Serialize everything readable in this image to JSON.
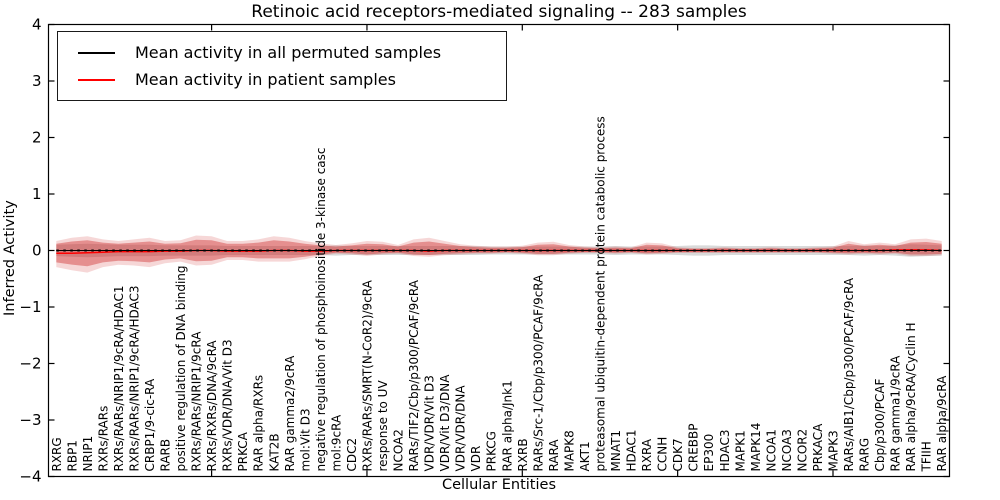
{
  "figure": {
    "title": "Retinoic acid receptors-mediated signaling -- 283 samples",
    "xlabel": "Cellular Entities",
    "ylabel": "Inferred Activity"
  },
  "chart_data": {
    "type": "line",
    "title": "Retinoic acid receptors-mediated signaling -- 283 samples",
    "xlabel": "Cellular Entities",
    "ylabel": "Inferred Activity",
    "ylim": [
      -4,
      4
    ],
    "yticks": [
      4,
      3,
      2,
      1,
      0,
      -1,
      -2,
      -3,
      -4
    ],
    "grid": false,
    "legend_position": "upper left",
    "categories": [
      "RXRG",
      "RBP1",
      "NRIP1",
      "RXRs/RARs",
      "RXRs/RARs/NRIP1/9cRA/HDAC1",
      "RXRs/RARs/NRIP1/9cRA/HDAC3",
      "CRBP1/9-cic-RA",
      "RARB",
      "positive regulation of DNA binding",
      "RXRs/RARs/NRIP1/9cRA",
      "RXRs/RXRs/DNA/9cRA",
      "RXRs/VDR/DNA/Vit D3",
      "PRKCA",
      "RAR alpha/RXRs",
      "KAT2B",
      "RAR gamma2/9cRA",
      "mol:Vit D3",
      "negative regulation of phosphoinositide 3-kinase casc",
      "mol:9cRA",
      "CDC2",
      "RXRs/RARs/SMRT(N-CoR2)/9cRA",
      "response to UV",
      "NCOA2",
      "RARs/TIF2/Cbp/p300/PCAF/9cRA",
      "VDR/VDR/Vit D3",
      "VDR/Vit D3/DNA",
      "VDR/VDR/DNA",
      "VDR",
      "PRKCG",
      "RAR alpha/Jnk1",
      "RXRB",
      "RARs/Src-1/Cbp/p300/PCAF/9cRA",
      "RARA",
      "MAPK8",
      "AKT1",
      "proteasomal ubiquitin-dependent protein catabolic process",
      "MNAT1",
      "HDAC1",
      "RXRA",
      "CCNH",
      "CDK7",
      "CREBBP",
      "EP300",
      "HDAC3",
      "MAPK1",
      "MAPK14",
      "NCOA1",
      "NCOA3",
      "NCOR2",
      "PRKACA",
      "MAPK3",
      "RARs/AIB1/Cbp/p300/PCAF/9cRA",
      "RARG",
      "Cbp/p300/PCAF",
      "RAR gamma1/9cRA",
      "RAR alpha/9cRA/Cyclin H",
      "TFIIH",
      "RAR alpha/9cRA"
    ],
    "series": [
      {
        "name": "Mean activity in all permuted samples",
        "color": "#000000",
        "values": [
          0,
          0,
          0,
          0,
          0,
          0,
          0,
          0,
          0,
          0,
          0,
          0,
          0,
          0,
          0,
          0,
          0,
          0,
          0,
          0,
          0,
          0,
          0,
          0,
          0,
          0,
          0,
          0,
          0,
          0,
          0,
          0,
          0,
          0,
          0,
          0,
          0,
          0,
          0,
          0,
          0,
          0,
          0,
          0,
          0,
          0,
          0,
          0,
          0,
          0,
          0,
          0,
          0,
          0,
          0,
          0,
          0,
          0
        ]
      },
      {
        "name": "Mean activity in patient samples",
        "color": "#ff0000",
        "values": [
          -0.05,
          -0.05,
          -0.04,
          -0.03,
          -0.02,
          -0.02,
          -0.02,
          -0.01,
          -0.01,
          0.0,
          0.0,
          -0.01,
          -0.01,
          -0.01,
          0.0,
          0.0,
          -0.01,
          -0.01,
          0.0,
          0.0,
          0.0,
          0.0,
          0.0,
          0.0,
          -0.01,
          0.0,
          0.0,
          0.0,
          0.0,
          0.0,
          0.0,
          0.0,
          0.0,
          0.0,
          0.0,
          0.0,
          0.0,
          0.0,
          0.0,
          0.0,
          0.0,
          0.0,
          0.0,
          0.0,
          0.0,
          0.0,
          0.0,
          0.0,
          0.0,
          0.0,
          0.0,
          0.0,
          0.0,
          0.0,
          0.01,
          0.01,
          0.01,
          0.0
        ]
      }
    ],
    "bands": [
      {
        "name": "patient-band",
        "color": "#cc2222",
        "fill_opacity": 0.4,
        "outer_scale": 1.4,
        "outer_opacity": 0.18,
        "upper": [
          0.12,
          0.16,
          0.18,
          0.14,
          0.12,
          0.14,
          0.16,
          0.12,
          0.13,
          0.19,
          0.18,
          0.12,
          0.12,
          0.14,
          0.18,
          0.16,
          0.12,
          0.09,
          0.07,
          0.09,
          0.12,
          0.11,
          0.07,
          0.14,
          0.16,
          0.12,
          0.08,
          0.06,
          0.05,
          0.05,
          0.06,
          0.1,
          0.11,
          0.07,
          0.05,
          0.04,
          0.05,
          0.04,
          0.1,
          0.09,
          0.04,
          0.03,
          0.03,
          0.04,
          0.03,
          0.03,
          0.04,
          0.03,
          0.03,
          0.04,
          0.05,
          0.12,
          0.08,
          0.1,
          0.08,
          0.14,
          0.15,
          0.12
        ],
        "lower": [
          -0.21,
          -0.25,
          -0.28,
          -0.21,
          -0.18,
          -0.19,
          -0.21,
          -0.16,
          -0.14,
          -0.19,
          -0.18,
          -0.12,
          -0.12,
          -0.14,
          -0.14,
          -0.14,
          -0.11,
          -0.07,
          -0.04,
          -0.05,
          -0.07,
          -0.05,
          -0.04,
          -0.07,
          -0.08,
          -0.06,
          -0.05,
          -0.04,
          -0.04,
          -0.03,
          -0.04,
          -0.06,
          -0.06,
          -0.04,
          -0.03,
          -0.03,
          -0.04,
          -0.03,
          -0.05,
          -0.04,
          -0.03,
          -0.03,
          -0.03,
          -0.03,
          -0.03,
          -0.03,
          -0.03,
          -0.03,
          -0.03,
          -0.03,
          -0.04,
          -0.05,
          -0.04,
          -0.05,
          -0.04,
          -0.07,
          -0.07,
          -0.06
        ]
      },
      {
        "name": "permuted-band",
        "color": "#808080",
        "fill_opacity": 0.3,
        "outer_scale": 1.0,
        "outer_opacity": 0,
        "upper": [
          0.1,
          0.11,
          0.12,
          0.11,
          0.1,
          0.1,
          0.1,
          0.09,
          0.09,
          0.09,
          0.09,
          0.08,
          0.08,
          0.08,
          0.08,
          0.08,
          0.08,
          0.08,
          0.09,
          0.08,
          0.08,
          0.08,
          0.08,
          0.08,
          0.08,
          0.08,
          0.08,
          0.08,
          0.07,
          0.07,
          0.07,
          0.07,
          0.07,
          0.07,
          0.07,
          0.07,
          0.08,
          0.07,
          0.07,
          0.07,
          0.08,
          0.09,
          0.09,
          0.08,
          0.08,
          0.08,
          0.08,
          0.08,
          0.08,
          0.08,
          0.08,
          0.08,
          0.09,
          0.08,
          0.09,
          0.11,
          0.1,
          0.09
        ],
        "lower": [
          -0.1,
          -0.11,
          -0.12,
          -0.11,
          -0.1,
          -0.1,
          -0.1,
          -0.09,
          -0.09,
          -0.09,
          -0.09,
          -0.08,
          -0.08,
          -0.08,
          -0.08,
          -0.08,
          -0.08,
          -0.08,
          -0.09,
          -0.08,
          -0.08,
          -0.08,
          -0.08,
          -0.08,
          -0.08,
          -0.08,
          -0.08,
          -0.08,
          -0.07,
          -0.07,
          -0.07,
          -0.07,
          -0.07,
          -0.07,
          -0.07,
          -0.07,
          -0.08,
          -0.07,
          -0.07,
          -0.07,
          -0.08,
          -0.09,
          -0.09,
          -0.08,
          -0.08,
          -0.08,
          -0.08,
          -0.08,
          -0.08,
          -0.08,
          -0.08,
          -0.08,
          -0.09,
          -0.08,
          -0.09,
          -0.11,
          -0.1,
          -0.09
        ]
      }
    ]
  }
}
